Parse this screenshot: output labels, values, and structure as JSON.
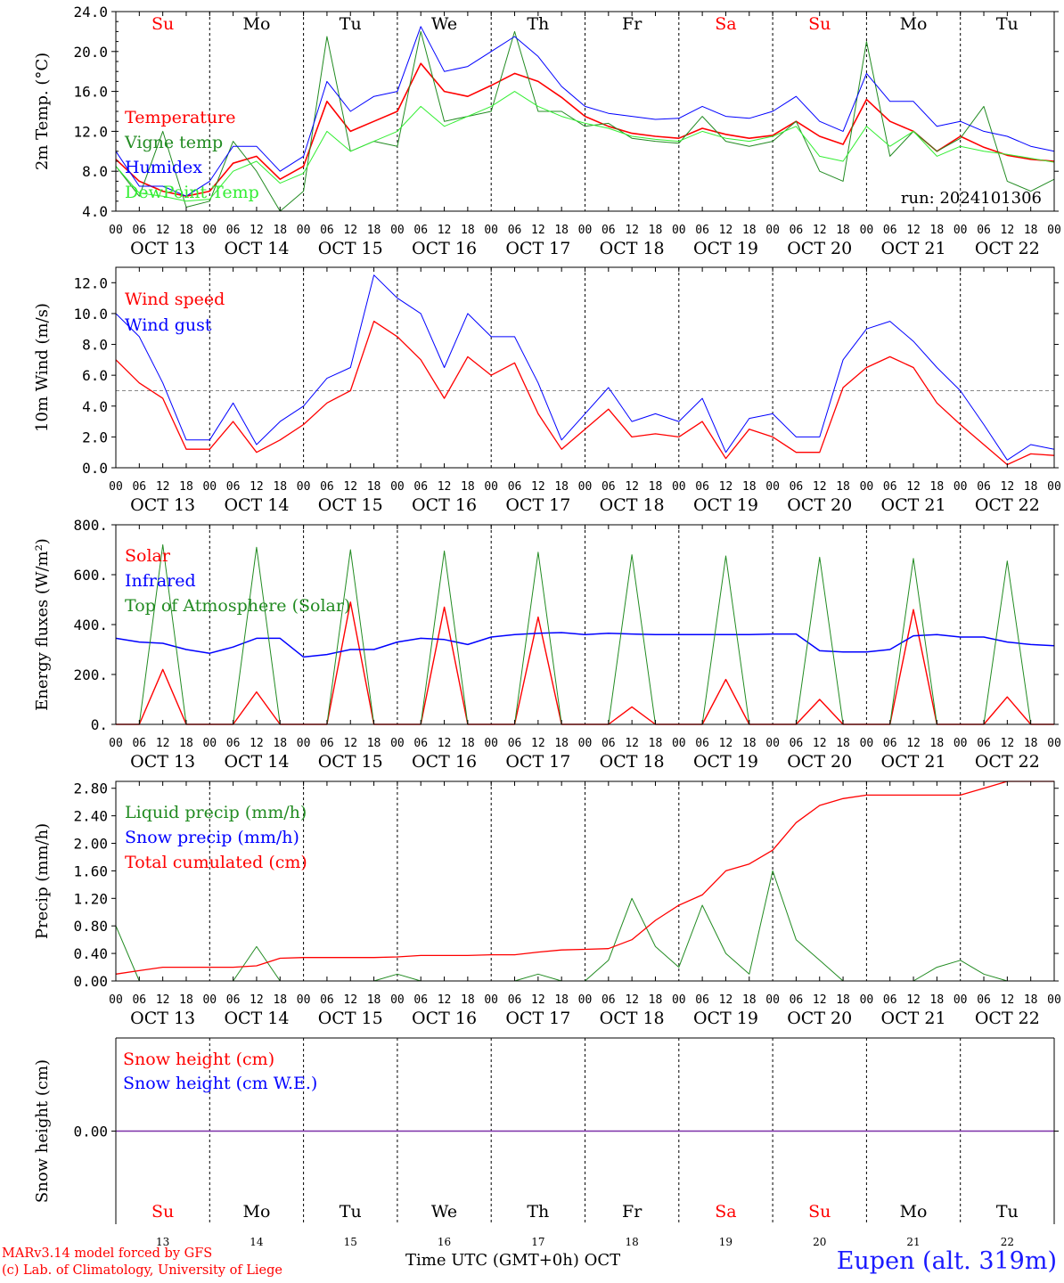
{
  "days": [
    "Su",
    "Mo",
    "Tu",
    "We",
    "Th",
    "Fr",
    "Sa",
    "Su",
    "Mo",
    "Tu"
  ],
  "day_colors": [
    "#ff0000",
    "#000000",
    "#000000",
    "#000000",
    "#000000",
    "#000000",
    "#ff0000",
    "#ff0000",
    "#000000",
    "#000000"
  ],
  "dates": [
    "OCT 13",
    "OCT 14",
    "OCT 15",
    "OCT 16",
    "OCT 17",
    "OCT 18",
    "OCT 19",
    "OCT 20",
    "OCT 21",
    "OCT 22"
  ],
  "date_numbers": [
    "13",
    "14",
    "15",
    "16",
    "17",
    "18",
    "19",
    "20",
    "21",
    "22"
  ],
  "hour_ticks": [
    "00",
    "06",
    "12",
    "18"
  ],
  "footer": {
    "credit_line1": "MARv3.14 model forced by GFS",
    "credit_line2": "(c) Lab. of Climatology, University of Liege",
    "axis_title": "Time UTC (GMT+0h) OCT",
    "station": "Eupen (alt. 319m)"
  },
  "chart_data": [
    {
      "type": "line",
      "ylabel": "2m Temp. (°C)",
      "ylim": [
        4,
        24
      ],
      "yticks": [
        "4.0",
        "8.0",
        "12.0",
        "16.0",
        "20.0",
        "24.0"
      ],
      "annotation": "run: 2024101306",
      "x_hours": [
        0,
        6,
        12,
        18,
        24,
        30,
        36,
        42,
        48,
        54,
        60,
        66,
        72,
        78,
        84,
        90,
        96,
        102,
        108,
        114,
        120,
        126,
        132,
        138,
        144,
        150,
        156,
        162,
        168,
        174,
        180,
        186,
        192,
        198,
        204,
        210,
        216,
        222,
        228,
        234,
        240
      ],
      "series": [
        {
          "name": "Temperature",
          "color": "#ff0000",
          "width": 1.6,
          "values": [
            9.2,
            7.0,
            6.0,
            5.5,
            6.0,
            8.8,
            9.5,
            7.2,
            8.5,
            15.0,
            12.0,
            13.0,
            14.0,
            18.8,
            16.0,
            15.5,
            16.6,
            17.8,
            17.0,
            15.4,
            13.5,
            12.5,
            11.8,
            11.5,
            11.3,
            12.3,
            11.7,
            11.3,
            11.6,
            13.0,
            11.5,
            10.7,
            15.2,
            13.0,
            12.0,
            10.0,
            11.5,
            10.4,
            9.6,
            9.2,
            9.0
          ]
        },
        {
          "name": "Vigne temp",
          "color": "#228b22",
          "width": 1,
          "values": [
            8.5,
            5.5,
            12.0,
            4.4,
            5.0,
            11.0,
            8.0,
            4.0,
            6.0,
            21.5,
            10.0,
            11.0,
            10.5,
            22.0,
            13.0,
            13.5,
            14.0,
            22.0,
            14.0,
            14.0,
            12.5,
            12.8,
            11.3,
            11.0,
            10.8,
            13.5,
            11.0,
            10.5,
            11.0,
            13.0,
            8.0,
            7.0,
            21.0,
            9.5,
            12.0,
            10.0,
            11.3,
            14.5,
            7.0,
            6.0,
            7.2
          ]
        },
        {
          "name": "Humidex",
          "color": "#0000ff",
          "width": 1,
          "values": [
            10.0,
            6.5,
            6.5,
            5.5,
            7.0,
            10.5,
            10.5,
            8.0,
            9.5,
            17.0,
            14.0,
            15.5,
            16.0,
            22.5,
            18.0,
            18.5,
            20.0,
            21.5,
            19.5,
            16.5,
            14.5,
            13.8,
            13.5,
            13.2,
            13.3,
            14.5,
            13.5,
            13.3,
            14.0,
            15.5,
            13.0,
            12.0,
            17.8,
            15.0,
            15.0,
            12.5,
            13.0,
            12.0,
            11.5,
            10.5,
            10.0
          ]
        },
        {
          "name": "DewPoint Temp",
          "color": "#33ee33",
          "width": 1,
          "values": [
            8.5,
            5.8,
            5.5,
            5.0,
            5.2,
            8.0,
            9.0,
            6.8,
            7.8,
            12.0,
            10.0,
            11.0,
            12.0,
            14.5,
            12.5,
            13.5,
            14.5,
            16.0,
            14.5,
            13.5,
            12.8,
            12.3,
            11.5,
            11.2,
            11.0,
            12.0,
            11.3,
            11.0,
            11.5,
            12.5,
            9.5,
            9.0,
            12.5,
            10.5,
            12.0,
            9.5,
            10.5,
            10.0,
            9.7,
            9.3,
            8.9
          ]
        }
      ]
    },
    {
      "type": "line",
      "ylabel": "10m Wind (m/s)",
      "ylim": [
        0,
        13
      ],
      "yticks": [
        "0.0",
        "2.0",
        "4.0",
        "6.0",
        "8.0",
        "10.0",
        "12.0"
      ],
      "reference_line": 5,
      "x_hours": [
        0,
        6,
        12,
        18,
        24,
        30,
        36,
        42,
        48,
        54,
        60,
        66,
        72,
        78,
        84,
        90,
        96,
        102,
        108,
        114,
        120,
        126,
        132,
        138,
        144,
        150,
        156,
        162,
        168,
        174,
        180,
        186,
        192,
        198,
        204,
        210,
        216,
        222,
        228,
        234,
        240
      ],
      "series": [
        {
          "name": "Wind speed",
          "color": "#ff0000",
          "width": 1.3,
          "values": [
            7.0,
            5.5,
            4.5,
            1.2,
            1.2,
            3.0,
            1.0,
            1.8,
            2.8,
            4.2,
            5.0,
            9.5,
            8.5,
            7.0,
            4.5,
            7.2,
            6.0,
            6.8,
            3.5,
            1.2,
            2.5,
            3.8,
            2.0,
            2.2,
            2.0,
            3.0,
            0.6,
            2.5,
            2.0,
            1.0,
            1.0,
            5.2,
            6.5,
            7.2,
            6.5,
            4.2,
            2.8,
            1.5,
            0.2,
            0.9,
            0.8
          ]
        },
        {
          "name": "Wind gust",
          "color": "#0000ff",
          "width": 1,
          "values": [
            10.0,
            8.5,
            5.5,
            1.8,
            1.8,
            4.2,
            1.5,
            3.0,
            4.0,
            5.8,
            6.5,
            12.5,
            11.0,
            10.0,
            6.5,
            10.0,
            8.5,
            8.5,
            5.5,
            1.8,
            3.5,
            5.2,
            3.0,
            3.5,
            3.0,
            4.5,
            1.0,
            3.2,
            3.5,
            2.0,
            2.0,
            7.0,
            9.0,
            9.5,
            8.2,
            6.5,
            5.0,
            2.8,
            0.5,
            1.5,
            1.2
          ]
        }
      ]
    },
    {
      "type": "line",
      "ylabel": "Energy fluxes (W/m²)",
      "ylim": [
        0,
        800
      ],
      "yticks": [
        "0.",
        "200.",
        "400.",
        "600.",
        "800."
      ],
      "x_hours": [
        0,
        6,
        12,
        18,
        24,
        30,
        36,
        42,
        48,
        54,
        60,
        66,
        72,
        78,
        84,
        90,
        96,
        102,
        108,
        114,
        120,
        126,
        132,
        138,
        144,
        150,
        156,
        162,
        168,
        174,
        180,
        186,
        192,
        198,
        204,
        210,
        216,
        222,
        228,
        234,
        240
      ],
      "series": [
        {
          "name": "Solar",
          "color": "#ff0000",
          "width": 1.4,
          "values": [
            0,
            0,
            220,
            0,
            0,
            0,
            130,
            0,
            0,
            0,
            490,
            0,
            0,
            0,
            470,
            0,
            0,
            0,
            430,
            0,
            0,
            0,
            70,
            0,
            0,
            0,
            180,
            0,
            0,
            0,
            100,
            0,
            0,
            0,
            460,
            0,
            0,
            0,
            110,
            0,
            0
          ]
        },
        {
          "name": "Infrared",
          "color": "#0000ff",
          "width": 1.5,
          "values": [
            345,
            330,
            325,
            300,
            285,
            310,
            345,
            345,
            270,
            280,
            300,
            300,
            330,
            345,
            340,
            320,
            350,
            360,
            365,
            368,
            360,
            365,
            362,
            360,
            360,
            360,
            360,
            360,
            362,
            362,
            295,
            290,
            290,
            300,
            355,
            360,
            350,
            350,
            330,
            320,
            315
          ]
        },
        {
          "name": "Top of Atmosphere (Solar)",
          "color": "#228b22",
          "width": 1,
          "values": [
            0,
            0,
            720,
            0,
            0,
            0,
            710,
            0,
            0,
            0,
            700,
            0,
            0,
            0,
            695,
            0,
            0,
            0,
            690,
            0,
            0,
            0,
            680,
            0,
            0,
            0,
            675,
            0,
            0,
            0,
            670,
            0,
            0,
            0,
            665,
            0,
            0,
            0,
            655,
            0,
            0
          ]
        }
      ]
    },
    {
      "type": "line",
      "ylabel": "Precip (mm/h)",
      "ylim": [
        0,
        2.9
      ],
      "yticks": [
        "0.00",
        "0.40",
        "0.80",
        "1.20",
        "1.60",
        "2.00",
        "2.40",
        "2.80"
      ],
      "x_hours": [
        0,
        6,
        12,
        18,
        24,
        30,
        36,
        42,
        48,
        54,
        60,
        66,
        72,
        78,
        84,
        90,
        96,
        102,
        108,
        114,
        120,
        126,
        132,
        138,
        144,
        150,
        156,
        162,
        168,
        174,
        180,
        186,
        192,
        198,
        204,
        210,
        216,
        222,
        228,
        234,
        240
      ],
      "series": [
        {
          "name": "Liquid precip (mm/h)",
          "color": "#228b22",
          "width": 1,
          "values": [
            0.8,
            0,
            0,
            0,
            0,
            0,
            0.5,
            0,
            0,
            0,
            0,
            0,
            0.1,
            0,
            0,
            0,
            0,
            0,
            0.1,
            0,
            0,
            0.3,
            1.2,
            0.5,
            0.2,
            1.1,
            0.4,
            0.1,
            1.6,
            0.6,
            0.3,
            0,
            0,
            0,
            0,
            0.2,
            0.3,
            0.1,
            0,
            0,
            0
          ]
        },
        {
          "name": "Snow precip (mm/h)",
          "color": "#0000ff",
          "width": 1,
          "values": [
            0,
            0,
            0,
            0,
            0,
            0,
            0,
            0,
            0,
            0,
            0,
            0,
            0,
            0,
            0,
            0,
            0,
            0,
            0,
            0,
            0,
            0,
            0,
            0,
            0,
            0,
            0,
            0,
            0,
            0,
            0,
            0,
            0,
            0,
            0,
            0,
            0,
            0,
            0,
            0,
            0
          ]
        },
        {
          "name": "Total cumulated (cm)",
          "color": "#ff0000",
          "width": 1.3,
          "values": [
            0.1,
            0.15,
            0.2,
            0.2,
            0.2,
            0.2,
            0.22,
            0.33,
            0.34,
            0.34,
            0.34,
            0.34,
            0.35,
            0.37,
            0.37,
            0.37,
            0.38,
            0.38,
            0.42,
            0.45,
            0.46,
            0.47,
            0.6,
            0.88,
            1.1,
            1.25,
            1.6,
            1.7,
            1.9,
            2.3,
            2.55,
            2.65,
            2.7,
            2.7,
            2.7,
            2.7,
            2.7,
            2.8,
            2.9,
            2.93,
            2.95
          ]
        }
      ]
    },
    {
      "type": "line",
      "ylabel": "Snow height (cm)",
      "ylim": [
        -1,
        1
      ],
      "yticks": [
        "0.00"
      ],
      "x_hours": [
        0,
        240
      ],
      "series": [
        {
          "name": "Snow height (cm)",
          "color": "#ff0000",
          "width": 1,
          "values": [
            0,
            0
          ]
        },
        {
          "name": "Snow height (cm W.E.)",
          "color": "#7b2fa8",
          "width": 1.5,
          "values": [
            0,
            0
          ]
        }
      ]
    }
  ]
}
